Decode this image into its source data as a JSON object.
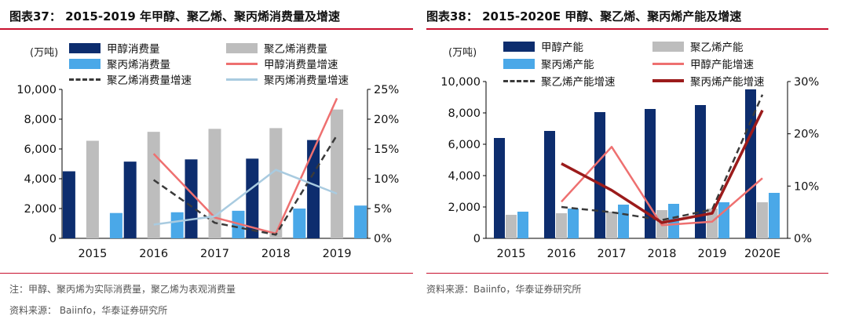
{
  "left": {
    "title": "图表37：  2015-2019 年甲醇、聚乙烯、聚丙烯消费量及增速",
    "unit": "(万吨)",
    "note": "注：甲醇、聚丙烯为实际消费量，聚乙烯为表观消费量",
    "source": "资料来源：  Baiinfo，华泰证券研究所"
  },
  "right": {
    "title": "图表38：  2015-2020E 甲醇、聚乙烯、聚丙烯产能及增速",
    "unit": "(万吨)",
    "source": "资料来源：Baiinfo，华泰证券研究所"
  },
  "colors": {
    "accent": "#c8102e",
    "navy": "#0d2d6e",
    "gray": "#bdbdbd",
    "lightblue": "#4aa8e8",
    "salmon": "#ee7070",
    "dark_dash": "#3a3a3a",
    "pale_blue": "#a9cbe0",
    "dark_red": "#9b1b1b"
  },
  "chart_data": [
    {
      "type": "bar",
      "categories": [
        "2015",
        "2016",
        "2017",
        "2018",
        "2019"
      ],
      "ylim": [
        0,
        10000
      ],
      "y_ticks": [
        "0",
        "2,000",
        "4,000",
        "6,000",
        "8,000",
        "10,000"
      ],
      "y2lim": [
        0,
        25
      ],
      "y2_ticks": [
        "0%",
        "5%",
        "10%",
        "15%",
        "20%",
        "25%"
      ],
      "series": [
        {
          "name": "甲醇消费量",
          "kind": "bar",
          "axis": "left",
          "color": "#0d2d6e",
          "values": [
            4500,
            5150,
            5300,
            5350,
            6600
          ]
        },
        {
          "name": "聚乙烯消费量",
          "kind": "bar",
          "axis": "left",
          "color": "#bdbdbd",
          "values": [
            6550,
            7150,
            7350,
            7400,
            8650
          ]
        },
        {
          "name": "聚丙烯消费量",
          "kind": "bar",
          "axis": "left",
          "color": "#4aa8e8",
          "values": [
            1700,
            1750,
            1850,
            2000,
            2200
          ]
        },
        {
          "name": "甲醇消费量增速",
          "kind": "line",
          "style": "solid",
          "axis": "right",
          "color": "#ee7070",
          "values": [
            null,
            14.2,
            3.5,
            0.8,
            23.5
          ]
        },
        {
          "name": "聚乙烯消费量增速",
          "kind": "line",
          "style": "dash",
          "axis": "right",
          "color": "#3a3a3a",
          "values": [
            null,
            9.8,
            2.6,
            0.6,
            17.3
          ]
        },
        {
          "name": "聚丙烯消费量增速",
          "kind": "line",
          "style": "solid",
          "axis": "right",
          "color": "#a9cbe0",
          "values": [
            null,
            2.3,
            3.7,
            11.5,
            7.5
          ]
        }
      ]
    },
    {
      "type": "bar",
      "categories": [
        "2015",
        "2016",
        "2017",
        "2018",
        "2019",
        "2020E"
      ],
      "ylim": [
        0,
        10000
      ],
      "y_ticks": [
        "0",
        "2,000",
        "4,000",
        "6,000",
        "8,000",
        "10,000"
      ],
      "y2lim": [
        0,
        30
      ],
      "y2_ticks": [
        "0%",
        "10%",
        "20%",
        "30%"
      ],
      "series": [
        {
          "name": "甲醇产能",
          "kind": "bar",
          "axis": "left",
          "color": "#0d2d6e",
          "values": [
            6400,
            6850,
            8050,
            8250,
            8500,
            9500
          ]
        },
        {
          "name": "聚乙烯产能",
          "kind": "bar",
          "axis": "left",
          "color": "#bdbdbd",
          "values": [
            1500,
            1600,
            1700,
            1800,
            1900,
            2300
          ]
        },
        {
          "name": "聚丙烯产能",
          "kind": "bar",
          "axis": "left",
          "color": "#4aa8e8",
          "values": [
            1700,
            1900,
            2150,
            2200,
            2300,
            2900
          ]
        },
        {
          "name": "甲醇产能增速",
          "kind": "line",
          "style": "solid",
          "axis": "right",
          "color": "#ee7070",
          "values": [
            null,
            7.0,
            17.5,
            2.5,
            3.2,
            11.5
          ]
        },
        {
          "name": "聚乙烯产能增速",
          "kind": "line",
          "style": "dash",
          "axis": "right",
          "color": "#3a3a3a",
          "values": [
            null,
            6.0,
            5.0,
            3.5,
            5.5,
            27.5
          ]
        },
        {
          "name": "聚丙烯产能增速",
          "kind": "line",
          "style": "thick",
          "axis": "right",
          "color": "#9b1b1b",
          "values": [
            null,
            14.3,
            9.2,
            3.0,
            4.8,
            24.5
          ]
        }
      ]
    }
  ]
}
